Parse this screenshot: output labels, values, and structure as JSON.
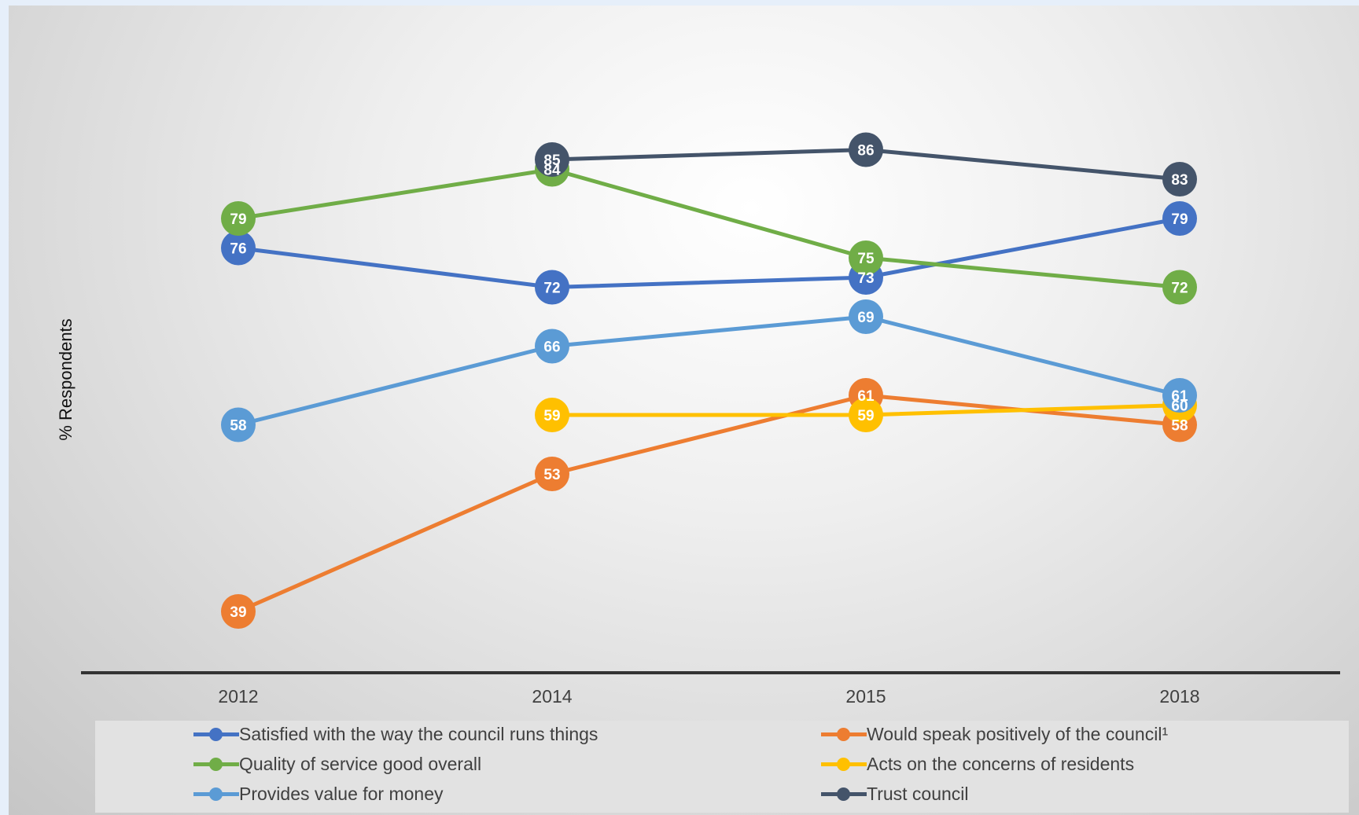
{
  "chart_data": {
    "type": "line",
    "title": "",
    "xlabel": "",
    "ylabel": "% Respondents",
    "categories": [
      "2012",
      "2014",
      "2015",
      "2018"
    ],
    "ylim": [
      30,
      100
    ],
    "grid": false,
    "legend_position": "bottom",
    "series": [
      {
        "name": "Satisfied with the way the council runs things",
        "color": "#4472c4",
        "values": [
          76,
          72,
          73,
          79
        ]
      },
      {
        "name": "Would speak positively of the council¹",
        "color": "#ed7d31",
        "values": [
          39,
          53,
          61,
          58
        ]
      },
      {
        "name": "Quality of service good overall",
        "color": "#70ad47",
        "values": [
          79,
          84,
          75,
          72
        ]
      },
      {
        "name": "Acts on the concerns of residents",
        "color": "#ffc000",
        "values": [
          null,
          59,
          59,
          60
        ]
      },
      {
        "name": "Provides value for money",
        "color": "#5b9bd5",
        "values": [
          58,
          66,
          69,
          61
        ]
      },
      {
        "name": "Trust council",
        "color": "#44546a",
        "values": [
          null,
          85,
          86,
          83
        ]
      }
    ]
  }
}
